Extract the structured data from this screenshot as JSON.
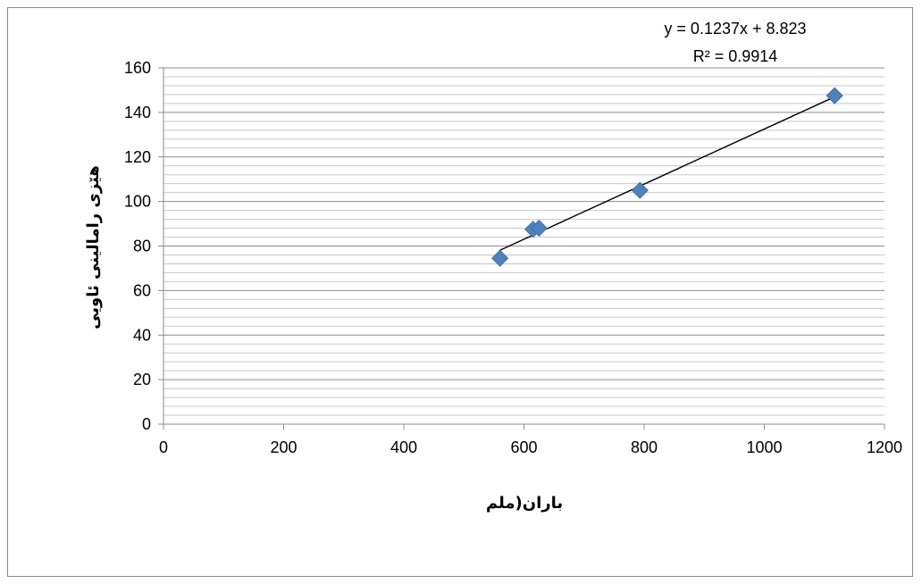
{
  "chart_data": {
    "type": "scatter",
    "xlabel": "باران(ملم",
    "ylabel": "هێزی رامالینی ئاویی",
    "xlim": [
      0,
      1200
    ],
    "ylim": [
      0,
      160
    ],
    "x_ticks": [
      0,
      200,
      400,
      600,
      800,
      1000,
      1200
    ],
    "y_ticks": [
      0,
      20,
      40,
      60,
      80,
      100,
      120,
      140,
      160
    ],
    "y_minor_step": 4,
    "grid": true,
    "legend": "none",
    "marker": "diamond",
    "marker_color": "#4f81bd",
    "series": [
      {
        "x": [
          560,
          615,
          625,
          793,
          1117
        ],
        "y": [
          74.5,
          87.5,
          88,
          105,
          147.5
        ]
      }
    ],
    "trendline": {
      "type": "linear",
      "slope": 0.1237,
      "intercept": 8.823,
      "x_range": [
        560,
        1117
      ],
      "equation_label": "y = 0.1237x + 8.823",
      "r2_label": "R² = 0.9914"
    }
  }
}
